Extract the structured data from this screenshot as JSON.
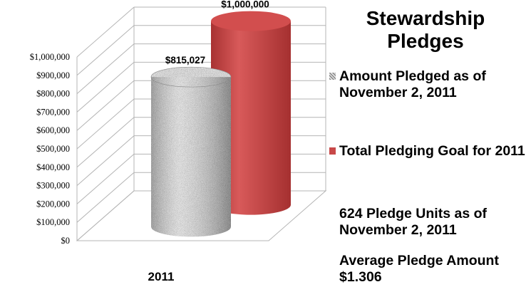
{
  "chart_data": {
    "type": "bar",
    "style": "3d-cylinder",
    "categories": [
      "2011"
    ],
    "title": "Stewardship Pledges",
    "series": [
      {
        "name": "Amount Pledged as of November 2, 2011",
        "values": [
          815027
        ],
        "label": "$815,027",
        "color": "#9a9a9a"
      },
      {
        "name": "Total Pledging Goal for 2011",
        "values": [
          1000000
        ],
        "label": "$1,000,000",
        "color": "#c84848"
      }
    ],
    "ylim": [
      0,
      1000000
    ],
    "yticks": [
      "$0",
      "$100,000",
      "$200,000",
      "$300,000",
      "$400,000",
      "$500,000",
      "$600,000",
      "$700,000",
      "$800,000",
      "$900,000",
      "$1,000,000"
    ],
    "grid": true,
    "legend_position": "right"
  },
  "legend": {
    "title": "Stewardship Pledges",
    "item1": "Amount Pledged as of November 2, 2011",
    "item2": "Total Pledging Goal for 2011"
  },
  "notes": {
    "units": "624 Pledge Units as of November 2, 2011",
    "average": "Average Pledge Amount $1.306"
  }
}
